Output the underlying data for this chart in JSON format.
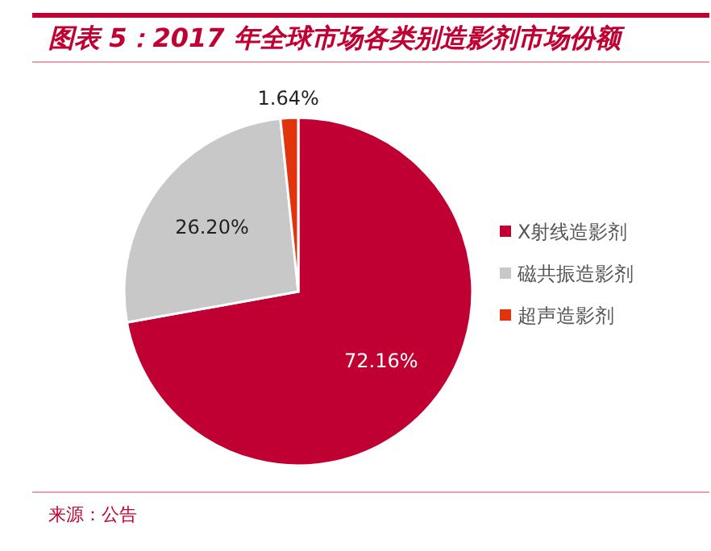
{
  "chart_data": {
    "type": "pie",
    "title": "图表 5：2017 年全球市场各类别造影剂市场份额",
    "categories": [
      "X射线造影剂",
      "磁共振造影剂",
      "超声造影剂"
    ],
    "values": [
      72.16,
      26.2,
      1.64
    ],
    "colors": [
      "#c00032",
      "#c8c8c8",
      "#e0340e"
    ],
    "value_labels": [
      "72.16%",
      "26.20%",
      "1.64%"
    ],
    "legend": "right",
    "annotations": [
      "来源：公告"
    ]
  }
}
